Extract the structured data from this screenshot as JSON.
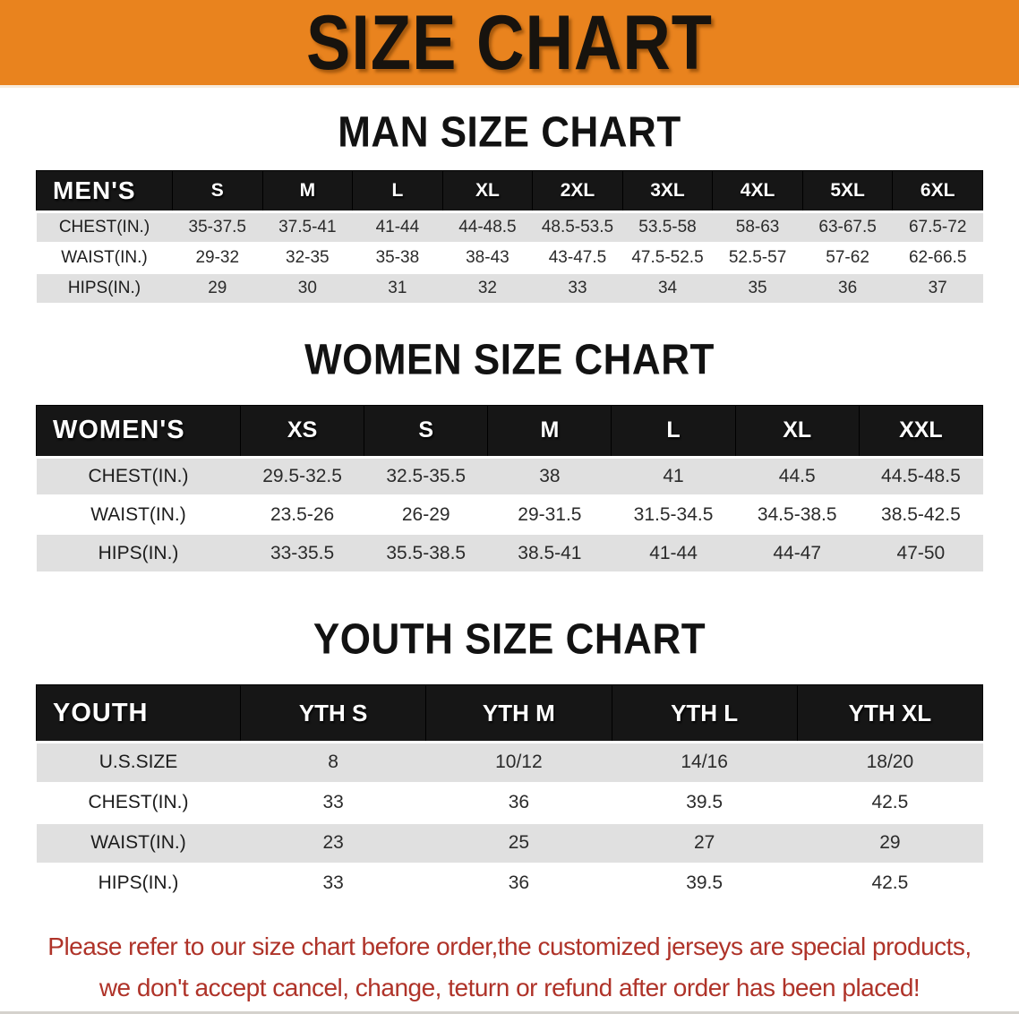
{
  "banner": {
    "title": "SIZE CHART"
  },
  "colors": {
    "banner_orange": "#E9831E",
    "header_black": "#161616",
    "stripe_gray": "#E0E0E0",
    "note_red": "#AF3329"
  },
  "chart_data": [
    {
      "type": "table",
      "title": "MAN SIZE CHART",
      "corner_label": "MEN'S",
      "columns": [
        "S",
        "M",
        "L",
        "XL",
        "2XL",
        "3XL",
        "4XL",
        "5XL",
        "6XL"
      ],
      "rows": [
        {
          "label": "CHEST(IN.)",
          "values": [
            "35-37.5",
            "37.5-41",
            "41-44",
            "44-48.5",
            "48.5-53.5",
            "53.5-58",
            "58-63",
            "63-67.5",
            "67.5-72"
          ]
        },
        {
          "label": "WAIST(IN.)",
          "values": [
            "29-32",
            "32-35",
            "35-38",
            "38-43",
            "43-47.5",
            "47.5-52.5",
            "52.5-57",
            "57-62",
            "62-66.5"
          ]
        },
        {
          "label": "HIPS(IN.)",
          "values": [
            "29",
            "30",
            "31",
            "32",
            "33",
            "34",
            "35",
            "36",
            "37"
          ]
        }
      ]
    },
    {
      "type": "table",
      "title": "WOMEN SIZE CHART",
      "corner_label": "WOMEN'S",
      "columns": [
        "XS",
        "S",
        "M",
        "L",
        "XL",
        "XXL"
      ],
      "rows": [
        {
          "label": "CHEST(IN.)",
          "values": [
            "29.5-32.5",
            "32.5-35.5",
            "38",
            "41",
            "44.5",
            "44.5-48.5"
          ]
        },
        {
          "label": "WAIST(IN.)",
          "values": [
            "23.5-26",
            "26-29",
            "29-31.5",
            "31.5-34.5",
            "34.5-38.5",
            "38.5-42.5"
          ]
        },
        {
          "label": "HIPS(IN.)",
          "values": [
            "33-35.5",
            "35.5-38.5",
            "38.5-41",
            "41-44",
            "44-47",
            "47-50"
          ]
        }
      ]
    },
    {
      "type": "table",
      "title": "YOUTH SIZE CHART",
      "corner_label": "YOUTH",
      "columns": [
        "YTH S",
        "YTH M",
        "YTH L",
        "YTH XL"
      ],
      "rows": [
        {
          "label": "U.S.SIZE",
          "values": [
            "8",
            "10/12",
            "14/16",
            "18/20"
          ]
        },
        {
          "label": "CHEST(IN.)",
          "values": [
            "33",
            "36",
            "39.5",
            "42.5"
          ]
        },
        {
          "label": "WAIST(IN.)",
          "values": [
            "23",
            "25",
            "27",
            "29"
          ]
        },
        {
          "label": "HIPS(IN.)",
          "values": [
            "33",
            "36",
            "39.5",
            "42.5"
          ]
        }
      ]
    }
  ],
  "footer": {
    "line1": "Please refer to our size chart before order,the customized jerseys are special products,",
    "line2": "we don't accept cancel, change, teturn or refund after order has been placed!"
  }
}
